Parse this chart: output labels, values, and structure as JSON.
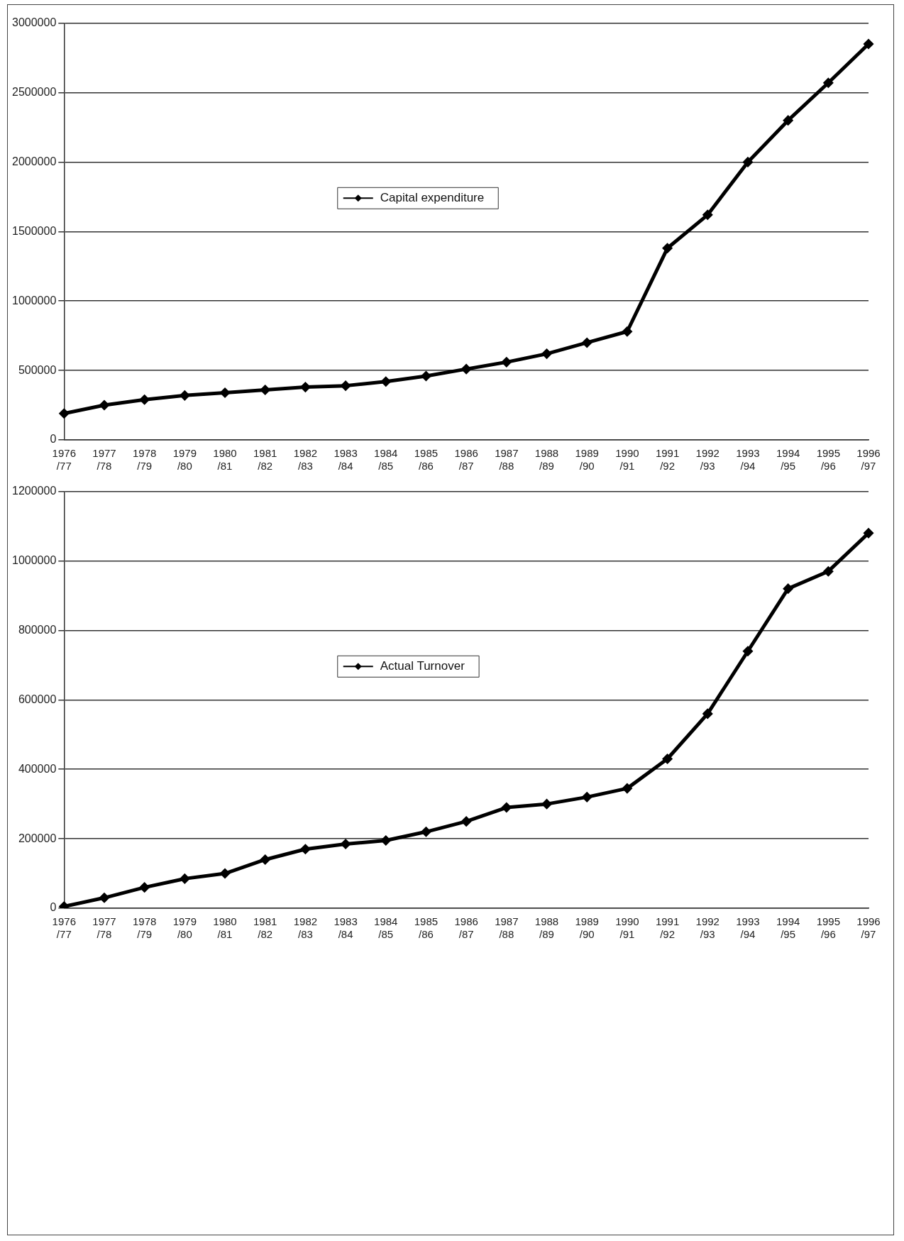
{
  "chart_data": [
    {
      "type": "line",
      "categories": [
        "1976/77",
        "1977/78",
        "1978/79",
        "1979/80",
        "1980/81",
        "1981/82",
        "1982/83",
        "1983/84",
        "1984/85",
        "1985/86",
        "1986/87",
        "1987/88",
        "1988/89",
        "1989/90",
        "1990/91",
        "1991/92",
        "1992/93",
        "1993/94",
        "1994/95",
        "1995/96",
        "1996/97"
      ],
      "series": [
        {
          "name": "Capital expenditure",
          "color": "#000000",
          "values": [
            190000,
            250000,
            290000,
            320000,
            340000,
            360000,
            380000,
            390000,
            420000,
            460000,
            510000,
            560000,
            620000,
            700000,
            780000,
            1380000,
            1620000,
            2000000,
            2300000,
            2570000,
            2850000
          ]
        }
      ],
      "ylim": [
        0,
        3000000
      ],
      "yticks": [
        0,
        500000,
        1000000,
        1500000,
        2000000,
        2500000,
        3000000
      ],
      "grid": "y",
      "legend": "center",
      "marker": "diamond",
      "line_style": "solid"
    },
    {
      "type": "line",
      "categories": [
        "1976/77",
        "1977/78",
        "1978/79",
        "1979/80",
        "1980/81",
        "1981/82",
        "1982/83",
        "1983/84",
        "1984/85",
        "1985/86",
        "1986/87",
        "1987/88",
        "1988/89",
        "1989/90",
        "1990/91",
        "1991/92",
        "1992/93",
        "1993/94",
        "1994/95",
        "1995/96",
        "1996/97"
      ],
      "series": [
        {
          "name": "Actual Turnover",
          "color": "#000000",
          "values": [
            5000,
            30000,
            60000,
            85000,
            100000,
            140000,
            170000,
            185000,
            195000,
            220000,
            250000,
            290000,
            300000,
            320000,
            345000,
            430000,
            560000,
            740000,
            920000,
            970000,
            1080000
          ]
        }
      ],
      "ylim": [
        0,
        1200000
      ],
      "yticks": [
        0,
        200000,
        400000,
        600000,
        800000,
        1000000,
        1200000
      ],
      "grid": "y",
      "legend": "center",
      "marker": "diamond",
      "line_style": "solid"
    }
  ]
}
